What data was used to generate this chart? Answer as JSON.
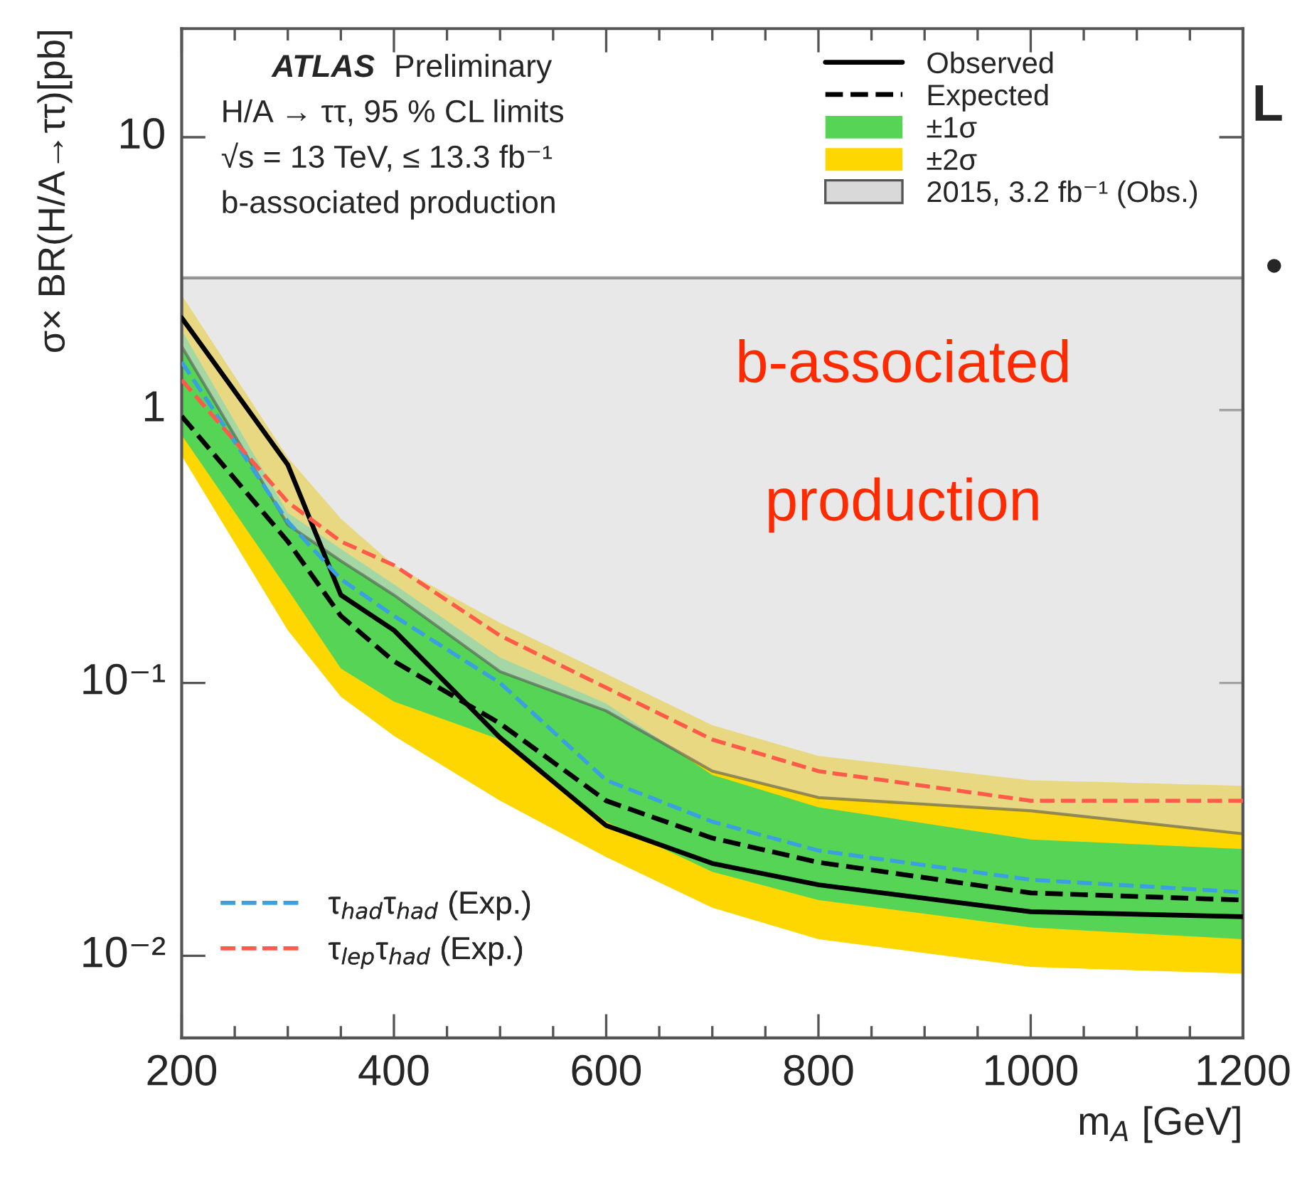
{
  "chart_data": {
    "type": "line",
    "xlabel": "m$_{A}$ [GeV]",
    "ylabel": "σ× BR(H/A→ττ)[pb]",
    "x": [
      200,
      300,
      350,
      400,
      500,
      600,
      700,
      800,
      1000,
      1200
    ],
    "series": [
      {
        "name": "±2σ",
        "type": "area",
        "color": "#ffd700",
        "values": [
          null,
          null,
          null,
          null,
          null,
          null,
          null,
          null,
          null,
          null
        ],
        "upper": [
          2.64,
          0.67,
          0.4,
          0.27,
          0.166,
          0.108,
          0.07,
          0.054,
          0.044,
          0.042
        ],
        "lower": [
          0.68,
          0.156,
          0.089,
          0.064,
          0.037,
          0.023,
          0.015,
          0.0115,
          0.0091,
          0.0086
        ]
      },
      {
        "name": "±1σ",
        "type": "area",
        "color": "#55d455",
        "values": [
          null,
          null,
          null,
          null,
          null,
          null,
          null,
          null,
          null,
          null
        ],
        "upper": [
          1.96,
          0.42,
          0.31,
          0.23,
          0.124,
          0.084,
          0.046,
          0.035,
          0.0267,
          0.0246
        ],
        "lower": [
          0.81,
          0.22,
          0.113,
          0.0855,
          0.062,
          0.031,
          0.0203,
          0.016,
          0.0127,
          0.0115
        ]
      },
      {
        "name": "2015, 3.2 fb⁻¹ (Obs.)",
        "type": "area",
        "color": "#d9d9d9",
        "values": [
          null,
          null,
          null,
          null,
          null,
          null,
          null,
          null,
          null,
          null
        ],
        "upper": [
          3.05,
          3.05,
          3.05,
          3.05,
          3.05,
          3.05,
          3.05,
          3.05,
          3.05,
          3.05
        ],
        "lower": [
          1.71,
          0.38,
          0.28,
          0.21,
          0.11,
          0.079,
          0.0475,
          0.038,
          0.034,
          0.028
        ]
      },
      {
        "name": "Expected",
        "color": "#000000",
        "line_style": "dashed",
        "values": [
          0.95,
          0.33,
          0.176,
          0.12,
          0.071,
          0.037,
          0.027,
          0.022,
          0.017,
          0.016
        ]
      },
      {
        "name": "Observed",
        "color": "#000000",
        "line_style": "solid",
        "values": [
          2.18,
          0.63,
          0.21,
          0.156,
          0.063,
          0.03,
          0.0218,
          0.0182,
          0.0145,
          0.0139
        ]
      },
      {
        "name": "τ$_{had}$τ$_{had}$ (Exp.)",
        "color": "#3aa0e0",
        "line_style": "dashed",
        "values": [
          1.5,
          0.39,
          0.24,
          0.176,
          0.1,
          0.044,
          0.031,
          0.0243,
          0.019,
          0.0171
        ]
      },
      {
        "name": "τ$_{lep}$τ$_{had}$ (Exp.)",
        "color": "#ff5a4a",
        "line_style": "dashed",
        "values": [
          1.29,
          0.46,
          0.33,
          0.27,
          0.149,
          0.096,
          0.062,
          0.0475,
          0.037,
          0.037
        ]
      }
    ],
    "log": "y",
    "xlim": [
      200,
      1200
    ],
    "xticks": [
      200,
      400,
      600,
      800,
      1000,
      1200
    ],
    "ylim": [
      0.005,
      25
    ],
    "yticks": [
      {
        "value": 0.01,
        "label": "10⁻²"
      },
      {
        "value": 0.1,
        "label": "10⁻¹"
      },
      1,
      10
    ],
    "legend": "top right",
    "annotations": [
      "ATLAS",
      "Preliminary",
      "H/A → ττ, 95 % CL limits",
      "√s = 13 TeV, ≤ 13.3 fb⁻¹",
      "b-associated production",
      "b-associated",
      "production",
      "L",
      "•"
    ]
  }
}
